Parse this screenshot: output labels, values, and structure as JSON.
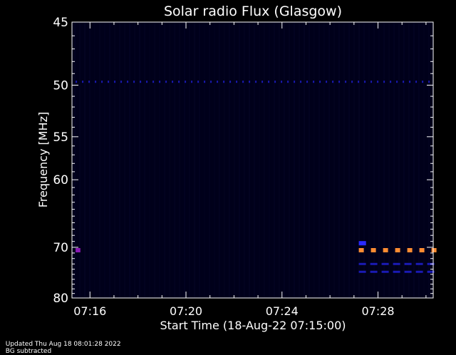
{
  "chart_data": {
    "type": "heatmap",
    "title": "Solar radio Flux (Glasgow)",
    "xlabel": "Start Time (18-Aug-22 07:15:00)",
    "ylabel": "Frequency [MHz]",
    "x_ticks": [
      "07:16",
      "07:20",
      "07:24",
      "07:28"
    ],
    "x_tick_minutes": [
      16,
      20,
      24,
      28
    ],
    "xlim_minutes": [
      15.25,
      30.3
    ],
    "y_ticks": [
      45,
      50,
      55,
      60,
      70,
      80
    ],
    "ylim": [
      45,
      80
    ],
    "y_scale": "reciprocal",
    "background_color": "#00001a",
    "features": [
      {
        "label": "band ~49.7 MHz",
        "freq": 49.7,
        "t_start": 15.4,
        "t_end": 30.3,
        "color": "#1a1ab4",
        "dashed": true
      },
      {
        "label": "burst ~70.5 MHz",
        "freq": 70.5,
        "t_start": 27.2,
        "t_end": 30.3,
        "color": "#ff8c32",
        "dashed": true
      },
      {
        "label": "spot ~70.5 MHz",
        "freq": 70.5,
        "t_start": 15.4,
        "t_end": 15.6,
        "color": "#8c1ab4",
        "dashed": false
      },
      {
        "label": "band ~69.3 MHz",
        "freq": 69.3,
        "t_start": 27.2,
        "t_end": 27.5,
        "color": "#2a2aff",
        "dashed": false
      },
      {
        "label": "band ~73 MHz",
        "freq": 73.0,
        "t_start": 27.2,
        "t_end": 30.3,
        "color": "#1a1ab4",
        "dashed": true
      },
      {
        "label": "band ~74.5 MHz",
        "freq": 74.5,
        "t_start": 27.2,
        "t_end": 30.3,
        "color": "#1a1ab4",
        "dashed": true
      }
    ]
  },
  "footer": {
    "updated": "Updated Thu Aug 18 08:01:28 2022",
    "note": "BG subtracted"
  }
}
